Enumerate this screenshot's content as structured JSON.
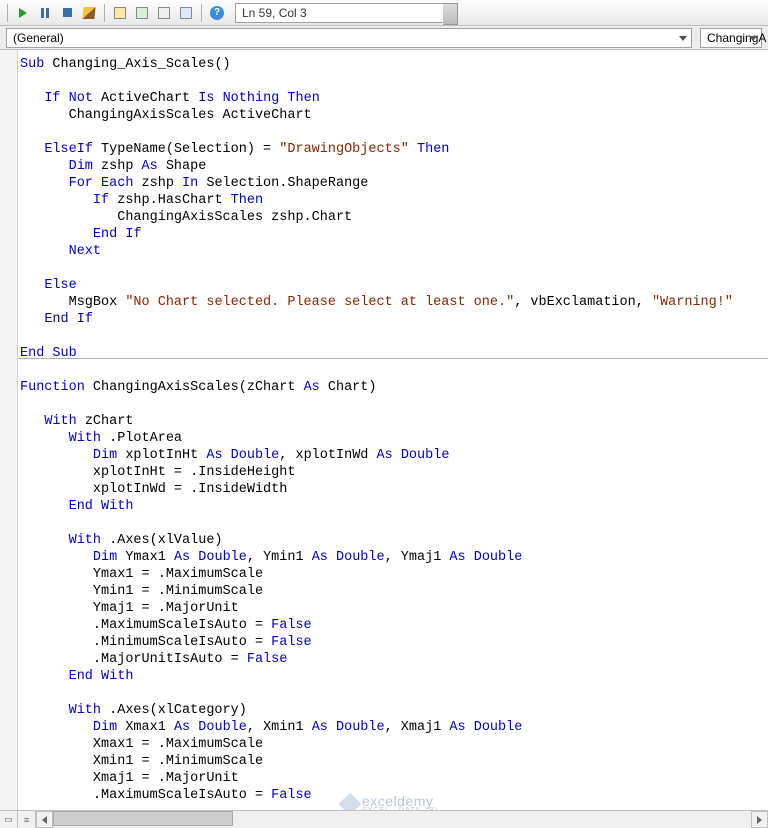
{
  "toolbar": {
    "status_text": "Ln 59, Col 3",
    "help_glyph": "?"
  },
  "dropdowns": {
    "left": "(General)",
    "right": "ChangingA"
  },
  "code": {
    "tokens": [
      [
        [
          "kw",
          "Sub"
        ],
        [
          "",
          " Changing_Axis_Scales()"
        ]
      ],
      [],
      [
        [
          "",
          "   "
        ],
        [
          "kw",
          "If"
        ],
        [
          "",
          " "
        ],
        [
          "kw",
          "Not"
        ],
        [
          "",
          " ActiveChart "
        ],
        [
          "kw",
          "Is"
        ],
        [
          "",
          " "
        ],
        [
          "kw",
          "Nothing"
        ],
        [
          "",
          " "
        ],
        [
          "kw",
          "Then"
        ]
      ],
      [
        [
          "",
          "      ChangingAxisScales ActiveChart"
        ]
      ],
      [],
      [
        [
          "",
          "   "
        ],
        [
          "kw",
          "ElseIf"
        ],
        [
          "",
          " TypeName(Selection) = "
        ],
        [
          "str",
          "\"DrawingObjects\""
        ],
        [
          "",
          " "
        ],
        [
          "kw",
          "Then"
        ]
      ],
      [
        [
          "",
          "      "
        ],
        [
          "kw",
          "Dim"
        ],
        [
          "",
          " zshp "
        ],
        [
          "kw",
          "As"
        ],
        [
          "",
          " Shape"
        ]
      ],
      [
        [
          "",
          "      "
        ],
        [
          "kw",
          "For"
        ],
        [
          "",
          " "
        ],
        [
          "kw",
          "Each"
        ],
        [
          "",
          " zshp "
        ],
        [
          "kw",
          "In"
        ],
        [
          "",
          " Selection.ShapeRange"
        ]
      ],
      [
        [
          "",
          "         "
        ],
        [
          "kw",
          "If"
        ],
        [
          "",
          " zshp.HasChart "
        ],
        [
          "kw",
          "Then"
        ]
      ],
      [
        [
          "",
          "            ChangingAxisScales zshp.Chart"
        ]
      ],
      [
        [
          "",
          "         "
        ],
        [
          "kw",
          "End"
        ],
        [
          "",
          " "
        ],
        [
          "kw",
          "If"
        ]
      ],
      [
        [
          "",
          "      "
        ],
        [
          "kw",
          "Next"
        ]
      ],
      [],
      [
        [
          "",
          "   "
        ],
        [
          "kw",
          "Else"
        ]
      ],
      [
        [
          "",
          "      MsgBox "
        ],
        [
          "str",
          "\"No Chart selected. Please select at least one.\""
        ],
        [
          "",
          ", vbExclamation, "
        ],
        [
          "str",
          "\"Warning!\""
        ]
      ],
      [
        [
          "",
          "   "
        ],
        [
          "kw",
          "End"
        ],
        [
          "",
          " "
        ],
        [
          "kw",
          "If"
        ]
      ],
      [],
      [
        [
          "kw",
          "End"
        ],
        [
          "",
          " "
        ],
        [
          "kw",
          "Sub"
        ]
      ],
      [],
      [
        [
          "kw",
          "Function"
        ],
        [
          "",
          " ChangingAxisScales(zChart "
        ],
        [
          "kw",
          "As"
        ],
        [
          "",
          " Chart)"
        ]
      ],
      [],
      [
        [
          "",
          "   "
        ],
        [
          "kw",
          "With"
        ],
        [
          "",
          " zChart"
        ]
      ],
      [
        [
          "",
          "      "
        ],
        [
          "kw",
          "With"
        ],
        [
          "",
          " .PlotArea"
        ]
      ],
      [
        [
          "",
          "         "
        ],
        [
          "kw",
          "Dim"
        ],
        [
          "",
          " xplotInHt "
        ],
        [
          "kw",
          "As"
        ],
        [
          "",
          " "
        ],
        [
          "kw",
          "Double"
        ],
        [
          "",
          ", xplotInWd "
        ],
        [
          "kw",
          "As"
        ],
        [
          "",
          " "
        ],
        [
          "kw",
          "Double"
        ]
      ],
      [
        [
          "",
          "         xplotInHt = .InsideHeight"
        ]
      ],
      [
        [
          "",
          "         xplotInWd = .InsideWidth"
        ]
      ],
      [
        [
          "",
          "      "
        ],
        [
          "kw",
          "End"
        ],
        [
          "",
          " "
        ],
        [
          "kw",
          "With"
        ]
      ],
      [],
      [
        [
          "",
          "      "
        ],
        [
          "kw",
          "With"
        ],
        [
          "",
          " .Axes(xlValue)"
        ]
      ],
      [
        [
          "",
          "         "
        ],
        [
          "kw",
          "Dim"
        ],
        [
          "",
          " Ymax1 "
        ],
        [
          "kw",
          "As"
        ],
        [
          "",
          " "
        ],
        [
          "kw",
          "Double"
        ],
        [
          "",
          ", Ymin1 "
        ],
        [
          "kw",
          "As"
        ],
        [
          "",
          " "
        ],
        [
          "kw",
          "Double"
        ],
        [
          "",
          ", Ymaj1 "
        ],
        [
          "kw",
          "As"
        ],
        [
          "",
          " "
        ],
        [
          "kw",
          "Double"
        ]
      ],
      [
        [
          "",
          "         Ymax1 = .MaximumScale"
        ]
      ],
      [
        [
          "",
          "         Ymin1 = .MinimumScale"
        ]
      ],
      [
        [
          "",
          "         Ymaj1 = .MajorUnit"
        ]
      ],
      [
        [
          "",
          "         .MaximumScaleIsAuto = "
        ],
        [
          "kw",
          "False"
        ]
      ],
      [
        [
          "",
          "         .MinimumScaleIsAuto = "
        ],
        [
          "kw",
          "False"
        ]
      ],
      [
        [
          "",
          "         .MajorUnitIsAuto = "
        ],
        [
          "kw",
          "False"
        ]
      ],
      [
        [
          "",
          "      "
        ],
        [
          "kw",
          "End"
        ],
        [
          "",
          " "
        ],
        [
          "kw",
          "With"
        ]
      ],
      [],
      [
        [
          "",
          "      "
        ],
        [
          "kw",
          "With"
        ],
        [
          "",
          " .Axes(xlCategory)"
        ]
      ],
      [
        [
          "",
          "         "
        ],
        [
          "kw",
          "Dim"
        ],
        [
          "",
          " Xmax1 "
        ],
        [
          "kw",
          "As"
        ],
        [
          "",
          " "
        ],
        [
          "kw",
          "Double"
        ],
        [
          "",
          ", Xmin1 "
        ],
        [
          "kw",
          "As"
        ],
        [
          "",
          " "
        ],
        [
          "kw",
          "Double"
        ],
        [
          "",
          ", Xmaj1 "
        ],
        [
          "kw",
          "As"
        ],
        [
          "",
          " "
        ],
        [
          "kw",
          "Double"
        ]
      ],
      [
        [
          "",
          "         Xmax1 = .MaximumScale"
        ]
      ],
      [
        [
          "",
          "         Xmin1 = .MinimumScale"
        ]
      ],
      [
        [
          "",
          "         Xmaj1 = .MajorUnit"
        ]
      ],
      [
        [
          "",
          "         .MaximumScaleIsAuto = "
        ],
        [
          "kw",
          "False"
        ]
      ]
    ],
    "separator_after_line": 17
  },
  "watermark": {
    "main": "exceldemy",
    "sub": "EXCEL · DATA · BI"
  },
  "colors": {
    "keyword": "#0000cc",
    "string": "#8b2500",
    "text": "#000000",
    "background": "#ffffff"
  }
}
